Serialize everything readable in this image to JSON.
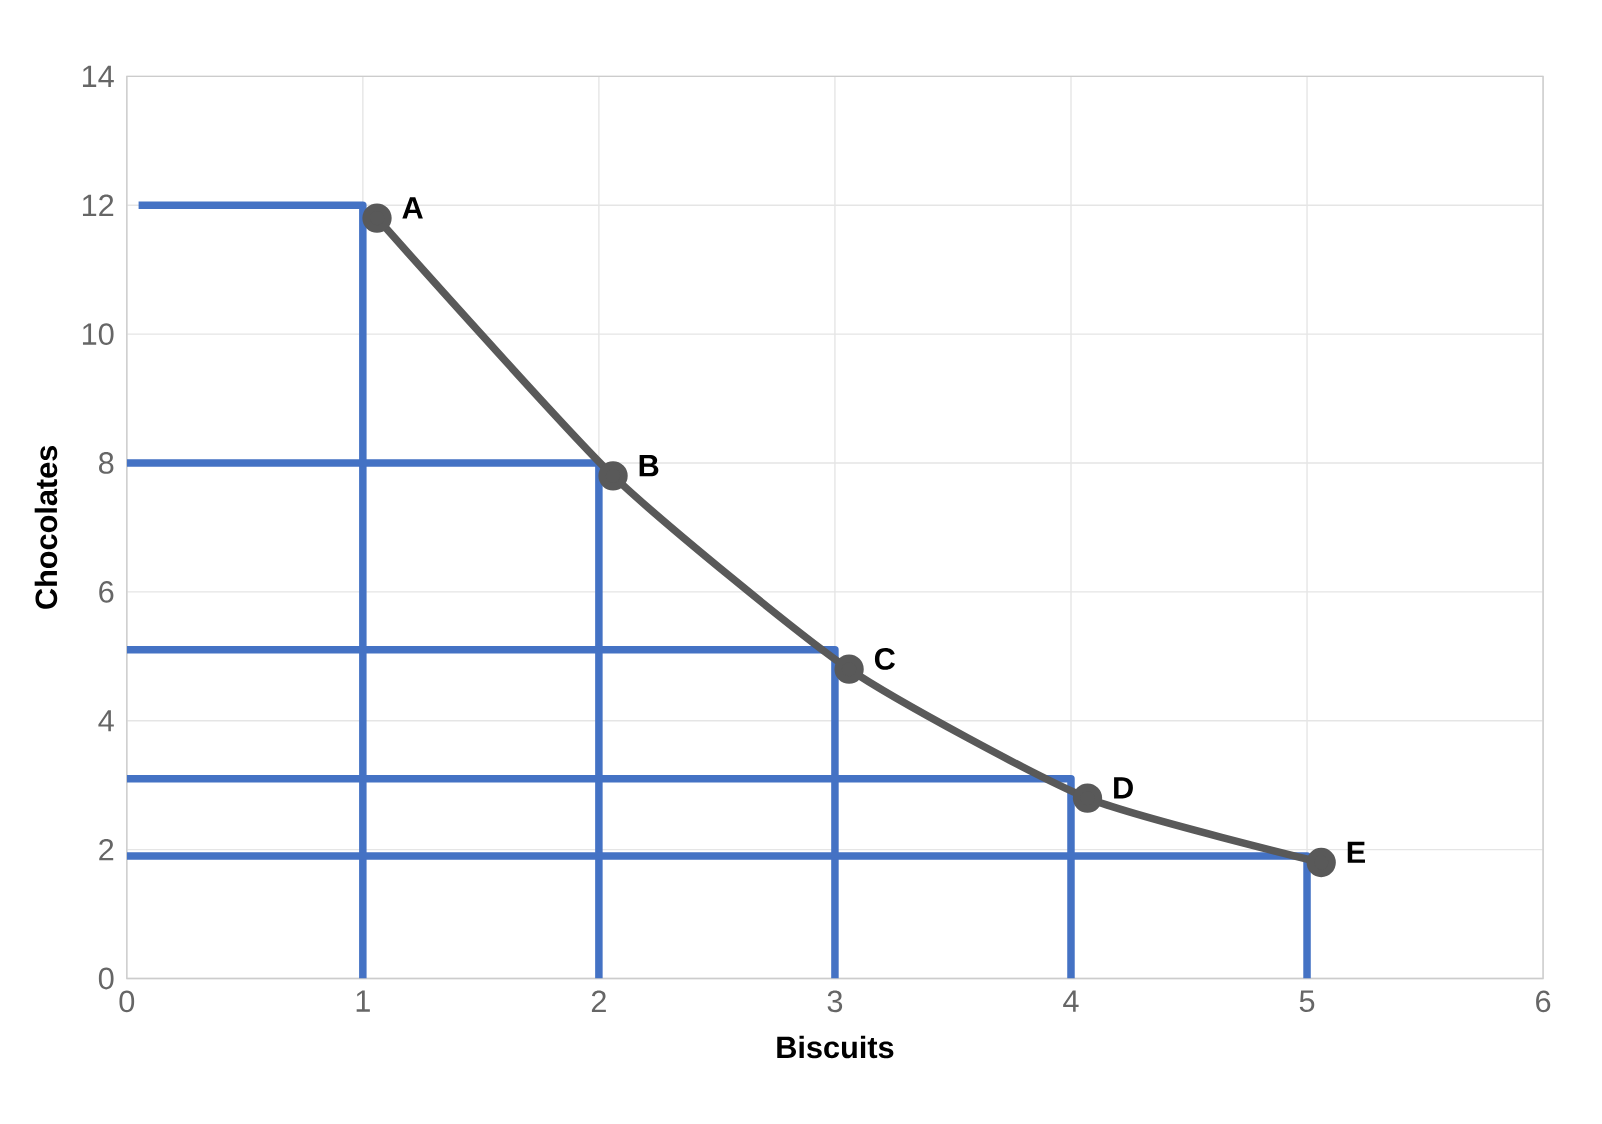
{
  "chart_data": {
    "type": "line",
    "xlabel": "Biscuits",
    "ylabel": "Chocolates",
    "xlim": [
      0,
      6
    ],
    "xticks": [
      0,
      1,
      2,
      3,
      4,
      5,
      6
    ],
    "ylim": [
      0,
      14
    ],
    "yticks": [
      0,
      2,
      4,
      6,
      8,
      10,
      12,
      14
    ],
    "grid": true,
    "marker": "circle",
    "line_style": "solid",
    "series": [
      {
        "color": "#4472c4",
        "marker": "none",
        "x": [
          0.05,
          1,
          1
        ],
        "values": [
          12,
          12,
          0
        ]
      },
      {
        "color": "#4472c4",
        "marker": "none",
        "x": [
          0,
          2,
          2
        ],
        "values": [
          8,
          8,
          0
        ]
      },
      {
        "color": "#4472c4",
        "marker": "none",
        "x": [
          0,
          3,
          3
        ],
        "values": [
          5.1,
          5.1,
          0
        ]
      },
      {
        "color": "#4472c4",
        "marker": "none",
        "x": [
          0,
          4,
          4
        ],
        "values": [
          3.1,
          3.1,
          0
        ]
      },
      {
        "color": "#4472c4",
        "marker": "none",
        "x": [
          0,
          5,
          5
        ],
        "values": [
          1.9,
          1.9,
          0
        ]
      },
      {
        "color": "#595959",
        "x": [
          1.06,
          2.06,
          3.06,
          4.07,
          5.06
        ],
        "values": [
          11.8,
          7.8,
          4.8,
          2.8,
          1.8
        ]
      }
    ],
    "annotations": [
      {
        "text": "A",
        "x": 1.06,
        "y": 11.8
      },
      {
        "text": "B",
        "x": 2.06,
        "y": 7.8
      },
      {
        "text": "C",
        "x": 3.06,
        "y": 4.8
      },
      {
        "text": "D",
        "x": 4.07,
        "y": 2.8
      },
      {
        "text": "E",
        "x": 5.06,
        "y": 1.8
      }
    ]
  }
}
